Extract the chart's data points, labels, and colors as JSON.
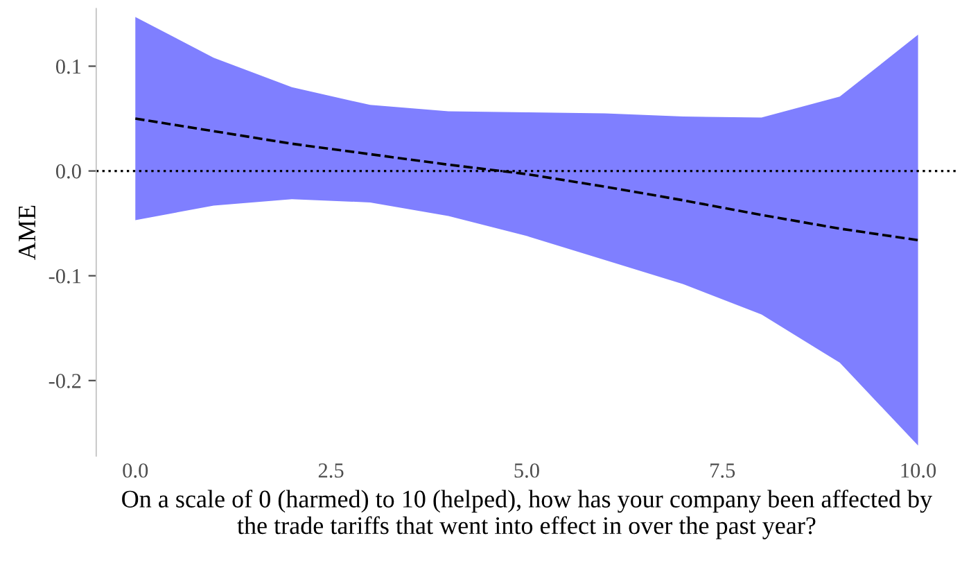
{
  "chart_data": {
    "type": "line",
    "xlabel": "On a scale of 0 (harmed) to 10 (helped), how has your company been affected by\nthe trade tariffs that went into effect in over the past year?",
    "ylabel": "AME",
    "x": [
      0,
      1,
      2,
      3,
      4,
      5,
      6,
      7,
      8,
      9,
      10
    ],
    "series": [
      {
        "color": "#000000",
        "upper": [
          0.147,
          0.108,
          0.08,
          0.063,
          0.057,
          0.056,
          0.055,
          0.052,
          0.051,
          0.071,
          0.13
        ],
        "lower": [
          -0.047,
          -0.033,
          -0.027,
          -0.03,
          -0.043,
          -0.062,
          -0.085,
          -0.108,
          -0.137,
          -0.183,
          -0.262
        ],
        "line_style": "dashed",
        "values": [
          0.05,
          0.038,
          0.026,
          0.016,
          0.006,
          -0.003,
          -0.015,
          -0.028,
          -0.042,
          -0.055,
          -0.066
        ]
      }
    ],
    "xlim": [
      -0.5,
      10.5
    ],
    "ylim": [
      -0.272,
      0.155
    ],
    "xticks": [
      {
        "value": 0,
        "label": "0.0"
      },
      {
        "value": 2.5,
        "label": "2.5"
      },
      {
        "value": 5,
        "label": "5.0"
      },
      {
        "value": 7.5,
        "label": "7.5"
      },
      {
        "value": 10,
        "label": "10.0"
      }
    ],
    "yticks": [
      {
        "value": 0.1,
        "label": "0.1"
      },
      {
        "value": 0,
        "label": "0.0"
      },
      {
        "value": -0.1,
        "label": "-0.1"
      },
      {
        "value": -0.2,
        "label": "-0.2"
      }
    ],
    "ref_lines": [
      {
        "axis": "y",
        "value": 0,
        "color": "#000000",
        "line_style": "dotted"
      }
    ],
    "grid": false,
    "legend": false
  }
}
